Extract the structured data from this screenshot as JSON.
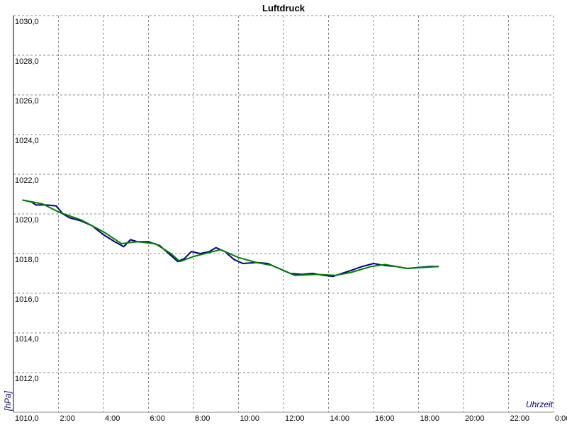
{
  "chart_data": {
    "type": "line",
    "title": "Luftdruck",
    "y_label": "[hPa]",
    "x_label": "Uhrzeit",
    "grid": true,
    "xlim": [
      0,
      24
    ],
    "xticks": [
      {
        "value": 2,
        "label": "2:00"
      },
      {
        "value": 4,
        "label": "4:00"
      },
      {
        "value": 6,
        "label": "6:00"
      },
      {
        "value": 8,
        "label": "8:00"
      },
      {
        "value": 10,
        "label": "10:00"
      },
      {
        "value": 12,
        "label": "12:00"
      },
      {
        "value": 14,
        "label": "14:00"
      },
      {
        "value": 16,
        "label": "16:00"
      },
      {
        "value": 18,
        "label": "18:00"
      },
      {
        "value": 20,
        "label": "20:00"
      },
      {
        "value": 22,
        "label": "22:00"
      },
      {
        "value": 24,
        "label": "0:00"
      }
    ],
    "ylim": [
      1010,
      1030
    ],
    "yticks": [
      {
        "value": 1010,
        "label": "1010,0"
      },
      {
        "value": 1012,
        "label": "1012,0"
      },
      {
        "value": 1014,
        "label": "1014,0"
      },
      {
        "value": 1016,
        "label": "1016,0"
      },
      {
        "value": 1018,
        "label": "1018,0"
      },
      {
        "value": 1020,
        "label": "1020,0"
      },
      {
        "value": 1022,
        "label": "1022,0"
      },
      {
        "value": 1024,
        "label": "1024,0"
      },
      {
        "value": 1026,
        "label": "1026,0"
      },
      {
        "value": 1028,
        "label": "1028,0"
      },
      {
        "value": 1030,
        "label": "1030,0"
      }
    ],
    "series": [
      {
        "color": "#000080",
        "x": [
          0.4,
          0.8,
          1.0,
          1.5,
          1.9,
          2.2,
          2.5,
          3.0,
          3.5,
          4.0,
          4.5,
          4.9,
          5.2,
          5.5,
          6.0,
          6.5,
          7.0,
          7.3,
          7.6,
          7.9,
          8.3,
          8.7,
          9.0,
          9.4,
          9.8,
          10.2,
          10.8,
          11.3,
          11.8,
          12.3,
          12.8,
          13.3,
          13.8,
          14.2,
          14.6,
          15.0,
          15.5,
          16.0,
          16.5,
          17.0,
          17.5,
          18.0,
          18.5,
          18.9
        ],
        "values": [
          1020.7,
          1020.6,
          1020.45,
          1020.45,
          1020.4,
          1020.0,
          1019.8,
          1019.65,
          1019.4,
          1018.95,
          1018.6,
          1018.35,
          1018.7,
          1018.6,
          1018.6,
          1018.4,
          1017.9,
          1017.6,
          1017.75,
          1018.1,
          1018.0,
          1018.1,
          1018.3,
          1018.1,
          1017.7,
          1017.5,
          1017.55,
          1017.5,
          1017.25,
          1017.0,
          1016.95,
          1017.0,
          1016.9,
          1016.85,
          1017.0,
          1017.15,
          1017.35,
          1017.5,
          1017.4,
          1017.35,
          1017.25,
          1017.3,
          1017.35,
          1017.35
        ]
      },
      {
        "color": "#008000",
        "x": [
          0.4,
          1.3,
          2.0,
          3.0,
          4.0,
          4.8,
          5.5,
          6.3,
          7.0,
          7.4,
          8.0,
          9.2,
          10.0,
          10.8,
          11.5,
          12.5,
          13.5,
          14.3,
          15.0,
          15.9,
          16.5,
          17.5,
          18.9
        ],
        "values": [
          1020.7,
          1020.5,
          1020.1,
          1019.7,
          1019.1,
          1018.5,
          1018.6,
          1018.5,
          1018.0,
          1017.6,
          1017.85,
          1018.2,
          1017.8,
          1017.55,
          1017.4,
          1016.9,
          1016.95,
          1016.9,
          1017.05,
          1017.35,
          1017.45,
          1017.25,
          1017.35
        ]
      }
    ]
  }
}
